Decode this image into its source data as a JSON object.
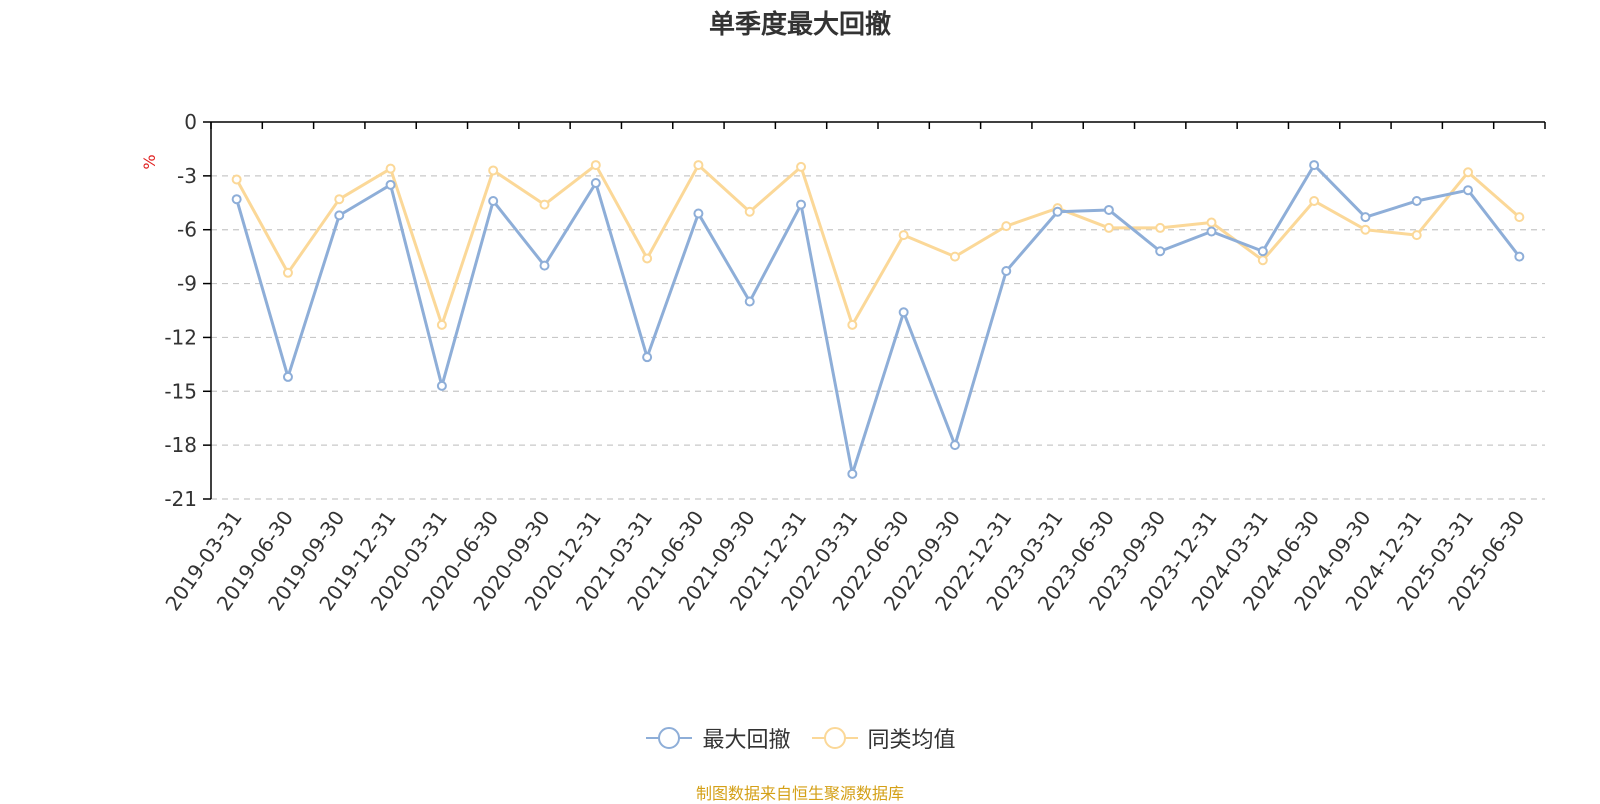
{
  "chart_data": {
    "type": "line",
    "title": "单季度最大回撤",
    "ylabel": "%",
    "ylim": [
      -21,
      0
    ],
    "yticks": [
      0,
      -3,
      -6,
      -9,
      -12,
      -15,
      -18,
      -21
    ],
    "ytick_labels": [
      "0",
      "-3",
      "-6",
      "-9",
      "-12",
      "-15",
      "-18",
      "-21"
    ],
    "grid": true,
    "legend_position": "bottom-center",
    "categories": [
      "2019-03-31",
      "2019-06-30",
      "2019-09-30",
      "2019-12-31",
      "2020-03-31",
      "2020-06-30",
      "2020-09-30",
      "2020-12-31",
      "2021-03-31",
      "2021-06-30",
      "2021-09-30",
      "2021-12-31",
      "2022-03-31",
      "2022-06-30",
      "2022-09-30",
      "2022-12-31",
      "2023-03-31",
      "2023-06-30",
      "2023-09-30",
      "2023-12-31",
      "2024-03-31",
      "2024-06-30",
      "2024-09-30",
      "2024-12-31",
      "2025-03-31",
      "2025-06-30"
    ],
    "series": [
      {
        "name": "最大回撤",
        "color": "#8eaed8",
        "values": [
          -4.3,
          -14.2,
          -5.2,
          -3.5,
          -14.7,
          -4.4,
          -8.0,
          -3.4,
          -13.1,
          -5.1,
          -10.0,
          -4.6,
          -19.6,
          -10.6,
          -18.0,
          -8.3,
          -5.0,
          -4.9,
          -7.2,
          -6.1,
          -7.2,
          -2.4,
          -5.3,
          -4.4,
          -3.8,
          -7.5
        ]
      },
      {
        "name": "同类均值",
        "color": "#fbd898",
        "values": [
          -3.2,
          -8.4,
          -4.3,
          -2.6,
          -11.3,
          -2.7,
          -4.6,
          -2.4,
          -7.6,
          -2.4,
          -5.0,
          -2.5,
          -11.3,
          -6.3,
          -7.5,
          -5.8,
          -4.8,
          -5.9,
          -5.9,
          -5.6,
          -7.7,
          -4.4,
          -6.0,
          -6.3,
          -2.8,
          -5.3
        ]
      }
    ]
  },
  "source_note": "制图数据来自恒生聚源数据库"
}
